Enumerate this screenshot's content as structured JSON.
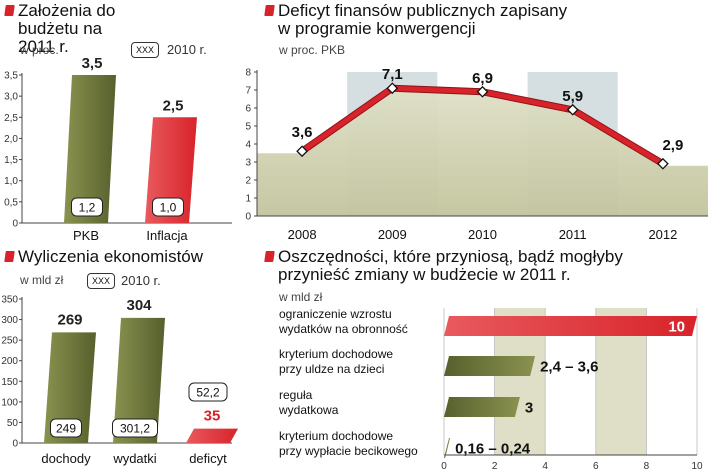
{
  "colors": {
    "olive_dark": "#57602c",
    "olive_light": "#8a9250",
    "red": "#d8232a",
    "red_light": "#e85a5e",
    "khaki": "#c3c49d",
    "khaki_light": "#dedfc6",
    "grey_band": "#d5dee0",
    "axis": "#444444"
  },
  "chart_data": [
    {
      "id": "budget_assumptions",
      "type": "bar",
      "title": "Założenia do budżetu na 2011 r.",
      "unit_label": "w proc.",
      "legend": {
        "box": "XXX",
        "label": "2010 r."
      },
      "categories": [
        "PKB",
        "Inflacja"
      ],
      "values": [
        3.5,
        2.5
      ],
      "values_2010": [
        "1,2",
        "1,0"
      ],
      "value_labels": [
        "3,5",
        "2,5"
      ],
      "ylim": [
        0,
        3.5
      ],
      "yticks": [
        "0",
        "0,5",
        "1,0",
        "1,5",
        "2,0",
        "2,5",
        "3,0",
        "3,5"
      ]
    },
    {
      "id": "deficit",
      "type": "line",
      "title_lines": [
        "Deficyt finansów publicznych zapisany",
        "w programie konwergencji"
      ],
      "unit_label": "w proc. PKB",
      "x": [
        "2008",
        "2009",
        "2010",
        "2011",
        "2012"
      ],
      "values": [
        3.6,
        7.1,
        6.9,
        5.9,
        2.9
      ],
      "value_labels": [
        "3,6",
        "7,1",
        "6,9",
        "5,9",
        "2,9"
      ],
      "ylim": [
        0,
        8
      ],
      "yticks": [
        "0",
        "1",
        "2",
        "3",
        "4",
        "5",
        "6",
        "7",
        "8"
      ]
    },
    {
      "id": "economists",
      "type": "bar",
      "title": "Wyliczenia ekonomistów",
      "unit_label": "w mld zł",
      "legend": {
        "box": "XXX",
        "label": "2010 r."
      },
      "categories": [
        "dochody",
        "wydatki",
        "deficyt"
      ],
      "values": [
        269,
        304,
        35
      ],
      "values_2010": [
        "249",
        "301,2",
        "52,2"
      ],
      "value_labels": [
        "269",
        "304",
        "35"
      ],
      "ylim": [
        0,
        350
      ],
      "yticks": [
        "0",
        "50",
        "100",
        "150",
        "200",
        "250",
        "300",
        "350"
      ]
    },
    {
      "id": "savings",
      "type": "bar",
      "orientation": "horizontal",
      "title_lines": [
        "Oszczędności, które przyniosą, bądź mogłyby",
        "przynieść zmiany w budżecie w 2011 r."
      ],
      "unit_label": "w mld zł",
      "categories": [
        [
          "ograniczenie wzrostu",
          "wydatków na obronność"
        ],
        [
          "kryterium dochodowe",
          "przy uldze na dzieci"
        ],
        [
          "reguła",
          "wydatkowa"
        ],
        [
          "kryterium dochodowe",
          "przy wypłacie becikowego"
        ]
      ],
      "values": [
        10,
        3.6,
        3,
        0.24
      ],
      "value_labels": [
        "10",
        "2,4 – 3,6",
        "3",
        "0,16 – 0,24"
      ],
      "xlim": [
        0,
        10
      ],
      "xticks": [
        "0",
        "2",
        "4",
        "6",
        "8",
        "10"
      ]
    }
  ]
}
